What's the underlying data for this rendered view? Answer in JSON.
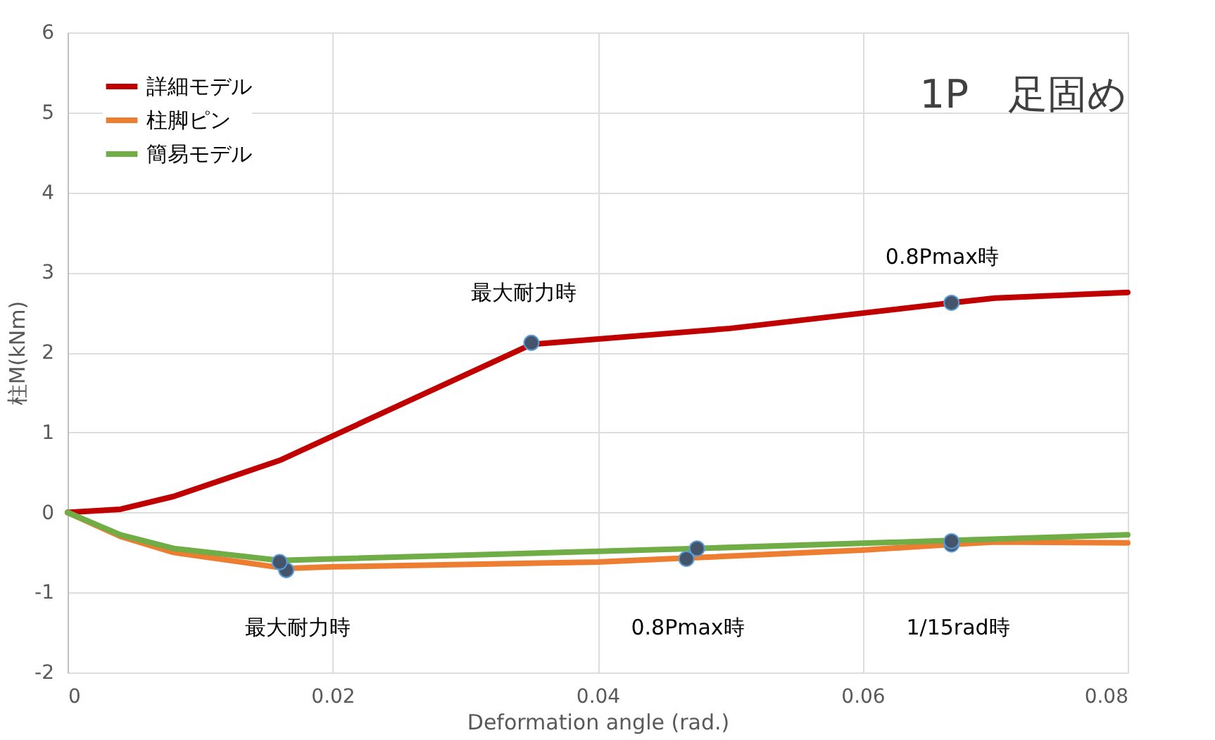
{
  "chart_data": {
    "type": "line",
    "xlabel": "Deformation angle (rad.)",
    "ylabel": "柱M(kNm)",
    "xlim": [
      0,
      0.08
    ],
    "xticks": [
      0,
      0.02,
      0.04,
      0.06,
      0.08
    ],
    "ylim": [
      -2,
      6
    ],
    "yticks": [
      -2,
      -1,
      0,
      1,
      2,
      3,
      4,
      5,
      6
    ],
    "grid": true,
    "legend": "top left",
    "marker": "none",
    "line_style": "solid",
    "series": [
      {
        "name": "詳細モデル",
        "color": "#c00000",
        "x": [
          0,
          0.004,
          0.008,
          0.016,
          0.035,
          0.05,
          0.0667,
          0.07,
          0.08
        ],
        "values": [
          0,
          0.04,
          0.2,
          0.65,
          2.1,
          2.3,
          2.62,
          2.68,
          2.75
        ]
      },
      {
        "name": "柱脚ピン",
        "color": "#ed7d31",
        "x": [
          0,
          0.004,
          0.008,
          0.0165,
          0.02,
          0.04,
          0.0467,
          0.06,
          0.0667,
          0.07,
          0.08
        ],
        "values": [
          0,
          -0.3,
          -0.5,
          -0.7,
          -0.68,
          -0.62,
          -0.57,
          -0.47,
          -0.4,
          -0.37,
          -0.38
        ]
      },
      {
        "name": "簡易モデル",
        "color": "#70ad47",
        "x": [
          0,
          0.004,
          0.008,
          0.016,
          0.02,
          0.0475,
          0.0667,
          0.08
        ],
        "values": [
          0,
          -0.28,
          -0.45,
          -0.6,
          -0.58,
          -0.45,
          -0.35,
          -0.28
        ]
      },
      {
        "type": "scatter",
        "marker": "circle",
        "color": "#44546a",
        "x": [
          0.035,
          0.0667,
          0.0165,
          0.0467,
          0.0667,
          0.016,
          0.0475,
          0.0667
        ],
        "values": [
          2.12,
          2.62,
          -0.72,
          -0.58,
          -0.4,
          -0.62,
          -0.45,
          -0.36
        ]
      }
    ],
    "annotations": [
      "1P　足固め",
      "最大耐力時",
      "0.8Pmax時",
      "最大耐力時",
      "0.8Pmax時",
      "1/15rad時"
    ]
  }
}
